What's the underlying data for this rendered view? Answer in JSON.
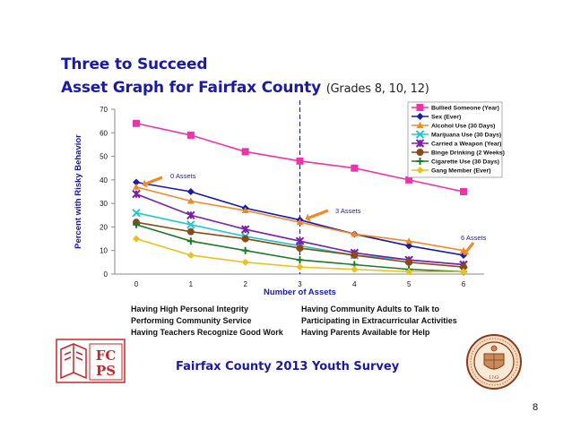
{
  "header": {
    "title_line1": "Three to Succeed",
    "title_line2": "Asset Graph for Fairfax County",
    "title_grades": "(Grades 8, 10, 12)"
  },
  "chart_data": {
    "type": "line",
    "xlabel": "Number of Assets",
    "ylabel": "Percent with Risky Behavior",
    "x": [
      0,
      1,
      2,
      3,
      4,
      5,
      6
    ],
    "xlim": [
      0,
      6
    ],
    "ylim": [
      0,
      70
    ],
    "yticks": [
      0,
      10,
      20,
      30,
      40,
      50,
      60,
      70
    ],
    "grid": false,
    "legend_position": "top-right",
    "reference_line_x": 3,
    "series": [
      {
        "name": "Bullied Someone (Year)",
        "color": "#ee33aa",
        "marker": "square",
        "values": [
          64,
          59,
          52,
          48,
          45,
          40,
          35
        ]
      },
      {
        "name": "Sex (Ever)",
        "color": "#1a1aa6",
        "marker": "diamond",
        "values": [
          39,
          35,
          28,
          23,
          17,
          12,
          8
        ]
      },
      {
        "name": "Alcohol Use (30 Days)",
        "color": "#f08a24",
        "marker": "triangle",
        "values": [
          37,
          31,
          27,
          22,
          17,
          14,
          10
        ]
      },
      {
        "name": "Marijuana Use (30 Days)",
        "color": "#22c7c7",
        "marker": "x",
        "values": [
          26,
          21,
          16,
          12,
          8,
          6,
          4
        ]
      },
      {
        "name": "Carried a Weapon (Year)",
        "color": "#7a1fa6",
        "marker": "star",
        "values": [
          34,
          25,
          19,
          14,
          9,
          6,
          4
        ]
      },
      {
        "name": "Binge Drinking (2 Weeks)",
        "color": "#8b4a14",
        "marker": "circle",
        "values": [
          22,
          18,
          15,
          11,
          8,
          5,
          3
        ]
      },
      {
        "name": "Cigarette Use (30 Days)",
        "color": "#1c7a2a",
        "marker": "plus",
        "values": [
          21,
          14,
          10,
          6,
          4,
          2,
          1
        ]
      },
      {
        "name": "Gang Member (Ever)",
        "color": "#e8c21a",
        "marker": "diamond",
        "values": [
          15,
          8,
          5,
          3,
          2,
          1,
          1
        ]
      }
    ],
    "annotations": [
      {
        "text": "0 Assets",
        "x": 0
      },
      {
        "text": "3 Assets",
        "x": 3
      },
      {
        "text": "6 Assets",
        "x": 6
      }
    ]
  },
  "assets_left": [
    "Having High Personal Integrity",
    "Performing Community Service",
    "Having Teachers Recognize Good Work"
  ],
  "assets_right": [
    "Having Community Adults to Talk to",
    "Participating in Extracurricular Activities",
    "Having Parents Available for Help"
  ],
  "footer": {
    "survey_title": "Fairfax County 2013 Youth Survey",
    "page_number": "8",
    "logo_text": "FCPS",
    "seal_year": "1742"
  }
}
